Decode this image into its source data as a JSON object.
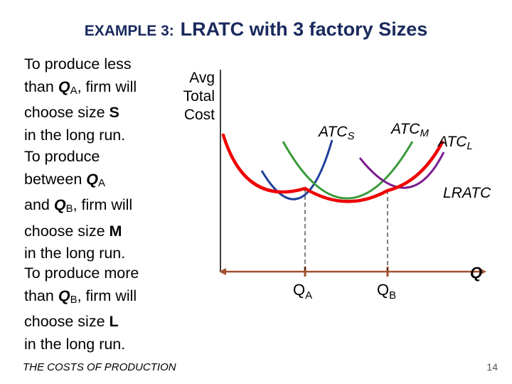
{
  "title": {
    "prefix": "EXAMPLE 3:",
    "main": "LRATC with 3 factory Sizes"
  },
  "paragraphs": [
    {
      "lines": [
        [
          {
            "t": "To produce less"
          }
        ],
        [
          {
            "t": "than "
          },
          {
            "t": "Q",
            "b": true,
            "i": true
          },
          {
            "t": "A",
            "sub": true
          },
          {
            "t": ", firm will"
          }
        ],
        [
          {
            "t": "choose size "
          },
          {
            "t": "S",
            "b": true
          }
        ],
        [
          {
            "t": "in the long run."
          }
        ]
      ]
    },
    {
      "lines": [
        [
          {
            "t": "To produce"
          }
        ],
        [
          {
            "t": "between "
          },
          {
            "t": "Q",
            "b": true,
            "i": true
          },
          {
            "t": "A",
            "sub": true
          }
        ],
        [
          {
            "t": "and "
          },
          {
            "t": "Q",
            "b": true,
            "i": true
          },
          {
            "t": "B",
            "sub": true
          },
          {
            "t": ", firm will"
          }
        ],
        [
          {
            "t": "choose size "
          },
          {
            "t": "M",
            "b": true
          }
        ],
        [
          {
            "t": "in the long run."
          }
        ]
      ]
    },
    {
      "lines": [
        [
          {
            "t": "To produce more"
          }
        ],
        [
          {
            "t": "than "
          },
          {
            "t": "Q",
            "b": true,
            "i": true
          },
          {
            "t": "B",
            "sub": true
          },
          {
            "t": ", firm will"
          }
        ],
        [
          {
            "t": "choose size "
          },
          {
            "t": "L",
            "b": true
          }
        ],
        [
          {
            "t": "in the long run."
          }
        ]
      ]
    }
  ],
  "y_axis_label": [
    "Avg",
    "Total",
    "Cost"
  ],
  "x_axis_label": "Q",
  "curves": {
    "atc_s": {
      "label": "ATC",
      "sub": "S",
      "color": "#1f3f9a"
    },
    "atc_m": {
      "label": "ATC",
      "sub": "M",
      "color": "#3a9a3a"
    },
    "atc_l": {
      "label": "ATC",
      "sub": "L",
      "color": "#7b1b8f"
    },
    "lratc": {
      "label": "LRATC",
      "color": "#ee0000"
    }
  },
  "markers": {
    "qa": {
      "q": "Q",
      "sub": "A"
    },
    "qb": {
      "q": "Q",
      "sub": "B"
    }
  },
  "colors": {
    "title": "#1a2a5e",
    "axis": "#a0522d"
  },
  "footer": "THE COSTS OF PRODUCTION",
  "page_number": "14"
}
